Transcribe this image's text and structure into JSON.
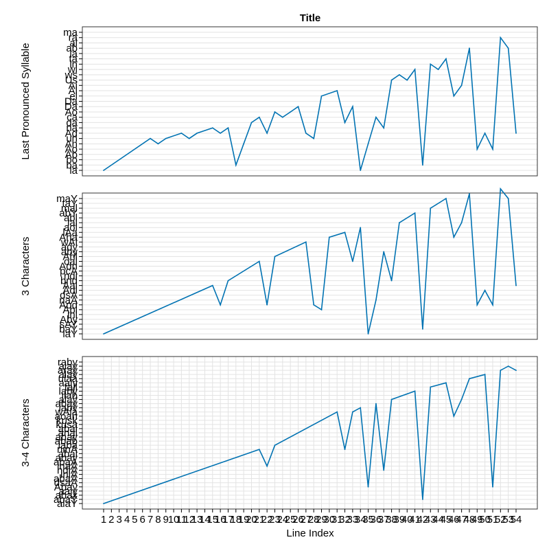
{
  "figure": {
    "title": "Title",
    "xlabel": "Line Index"
  },
  "chart_data": [
    {
      "type": "line",
      "ylabel": "Last Pronounced Syllable",
      "x_categories": [
        "1",
        "2",
        "3",
        "4",
        "5",
        "6",
        "7",
        "8",
        "9",
        "10",
        "11",
        "12",
        "13",
        "14",
        "15",
        "16",
        "17",
        "18",
        "19",
        "20",
        "21",
        "22",
        "23",
        "24",
        "25",
        "26",
        "27",
        "28",
        "29",
        "30",
        "31",
        "32",
        "33",
        "34",
        "35",
        "36",
        "37",
        "38",
        "39",
        "40",
        "41",
        "42",
        "43",
        "44",
        "45",
        "46",
        "47",
        "48",
        "49",
        "50",
        "51",
        "52",
        "53",
        "54"
      ],
      "y_categories": [
        "la",
        "ba",
        "bo",
        "Ab",
        "Ao",
        "An",
        "un",
        "Ad",
        "na",
        "da",
        "ca",
        "Ao",
        "Da",
        "Da",
        "el",
        "Al",
        "Ai",
        "Us",
        "ws",
        "wi",
        "in",
        "ta",
        "la",
        "ab",
        "al",
        "ra",
        "ma"
      ],
      "series_color": "#0072b2",
      "series": [
        {
          "x": 1,
          "y": 1
        },
        {
          "x": 7,
          "y": 7
        },
        {
          "x": 8,
          "y": 6
        },
        {
          "x": 9,
          "y": 7
        },
        {
          "x": 11,
          "y": 8
        },
        {
          "x": 12,
          "y": 7
        },
        {
          "x": 13,
          "y": 8
        },
        {
          "x": 15,
          "y": 9
        },
        {
          "x": 16,
          "y": 8
        },
        {
          "x": 17,
          "y": 9
        },
        {
          "x": 18,
          "y": 2
        },
        {
          "x": 19,
          "y": 6
        },
        {
          "x": 20,
          "y": 10
        },
        {
          "x": 21,
          "y": 11
        },
        {
          "x": 22,
          "y": 8
        },
        {
          "x": 23,
          "y": 12
        },
        {
          "x": 24,
          "y": 11
        },
        {
          "x": 25,
          "y": 12
        },
        {
          "x": 26,
          "y": 13
        },
        {
          "x": 27,
          "y": 8
        },
        {
          "x": 28,
          "y": 7
        },
        {
          "x": 29,
          "y": 15
        },
        {
          "x": 31,
          "y": 16
        },
        {
          "x": 32,
          "y": 10
        },
        {
          "x": 33,
          "y": 13
        },
        {
          "x": 34,
          "y": 1
        },
        {
          "x": 35,
          "y": 6
        },
        {
          "x": 36,
          "y": 11
        },
        {
          "x": 37,
          "y": 9
        },
        {
          "x": 38,
          "y": 18
        },
        {
          "x": 39,
          "y": 19
        },
        {
          "x": 40,
          "y": 18
        },
        {
          "x": 41,
          "y": 20
        },
        {
          "x": 42,
          "y": 2
        },
        {
          "x": 43,
          "y": 21
        },
        {
          "x": 44,
          "y": 20
        },
        {
          "x": 45,
          "y": 22
        },
        {
          "x": 46,
          "y": 15
        },
        {
          "x": 47,
          "y": 17
        },
        {
          "x": 48,
          "y": 24
        },
        {
          "x": 49,
          "y": 5
        },
        {
          "x": 50,
          "y": 8
        },
        {
          "x": 51,
          "y": 5
        },
        {
          "x": 52,
          "y": 26
        },
        {
          "x": 53,
          "y": 24
        },
        {
          "x": 54,
          "y": 8
        }
      ]
    },
    {
      "type": "line",
      "ylabel": "3 Characters",
      "x_categories": [
        "1",
        "2",
        "3",
        "4",
        "5",
        "6",
        "7",
        "8",
        "9",
        "10",
        "11",
        "12",
        "13",
        "14",
        "15",
        "16",
        "17",
        "18",
        "19",
        "20",
        "21",
        "22",
        "23",
        "24",
        "25",
        "26",
        "27",
        "28",
        "29",
        "30",
        "31",
        "32",
        "33",
        "34",
        "35",
        "36",
        "37",
        "38",
        "39",
        "40",
        "41",
        "42",
        "43",
        "44",
        "45",
        "46",
        "47",
        "48",
        "49",
        "50",
        "51",
        "52",
        "53",
        "54"
      ],
      "y_categories": [
        "laY",
        "baY",
        "sAY",
        "Aby",
        "inl",
        "Abl",
        "Aod",
        "naA",
        "dsA",
        "Adl",
        "Aal",
        "bnd",
        "ndi",
        "pcA",
        "Adn",
        "oal",
        "Ahl",
        "aby",
        "ady",
        "wAl",
        "Aha",
        "lAa",
        "aol",
        "lal",
        "abl",
        "abY",
        "mal",
        "taY",
        "maY"
      ],
      "series_color": "#0072b2",
      "series": [
        {
          "x": 1,
          "y": 1
        },
        {
          "x": 15,
          "y": 11
        },
        {
          "x": 16,
          "y": 7
        },
        {
          "x": 17,
          "y": 12
        },
        {
          "x": 21,
          "y": 16
        },
        {
          "x": 22,
          "y": 7
        },
        {
          "x": 23,
          "y": 17
        },
        {
          "x": 27,
          "y": 20
        },
        {
          "x": 28,
          "y": 7
        },
        {
          "x": 29,
          "y": 6
        },
        {
          "x": 30,
          "y": 21
        },
        {
          "x": 32,
          "y": 22
        },
        {
          "x": 33,
          "y": 16
        },
        {
          "x": 34,
          "y": 23
        },
        {
          "x": 35,
          "y": 1
        },
        {
          "x": 36,
          "y": 8
        },
        {
          "x": 37,
          "y": 18
        },
        {
          "x": 38,
          "y": 12
        },
        {
          "x": 39,
          "y": 24
        },
        {
          "x": 41,
          "y": 26
        },
        {
          "x": 42,
          "y": 2
        },
        {
          "x": 43,
          "y": 27
        },
        {
          "x": 45,
          "y": 29
        },
        {
          "x": 46,
          "y": 21
        },
        {
          "x": 47,
          "y": 24
        },
        {
          "x": 48,
          "y": 30
        },
        {
          "x": 49,
          "y": 7
        },
        {
          "x": 50,
          "y": 10
        },
        {
          "x": 51,
          "y": 7
        },
        {
          "x": 52,
          "y": 31
        },
        {
          "x": 53,
          "y": 29
        },
        {
          "x": 54,
          "y": 11
        }
      ]
    },
    {
      "type": "line",
      "ylabel": "3-4 Characters",
      "x_categories": [
        "1",
        "2",
        "3",
        "4",
        "5",
        "6",
        "7",
        "8",
        "9",
        "10",
        "11",
        "12",
        "13",
        "14",
        "15",
        "16",
        "17",
        "18",
        "19",
        "20",
        "21",
        "22",
        "23",
        "24",
        "25",
        "26",
        "27",
        "28",
        "29",
        "30",
        "31",
        "32",
        "33",
        "34",
        "35",
        "36",
        "37",
        "38",
        "39",
        "40",
        "41",
        "42",
        "43",
        "44",
        "45",
        "46",
        "47",
        "48",
        "49",
        "50",
        "51",
        "52",
        "53",
        "54"
      ],
      "y_categories": [
        "alaY",
        "abaY",
        "abax",
        "aaly",
        "Abay",
        "dsaA",
        "abaA",
        "inlA",
        "ndiA",
        "lnaA",
        "abaA",
        "abay",
        "abal",
        "ninA",
        "laba",
        "abab",
        "ahay",
        "anal",
        "abal",
        "kusa",
        "kusk",
        "aoan",
        "wAla",
        "laby",
        "abay",
        "alay",
        "ilab",
        "laby",
        "tall",
        "aaly",
        "ulaa",
        "alay",
        "aray",
        "alay",
        "raby"
      ],
      "series_color": "#0072b2",
      "series": [
        {
          "x": 1,
          "y": 1
        },
        {
          "x": 21,
          "y": 14
        },
        {
          "x": 22,
          "y": 10
        },
        {
          "x": 23,
          "y": 15
        },
        {
          "x": 31,
          "y": 23
        },
        {
          "x": 32,
          "y": 14
        },
        {
          "x": 33,
          "y": 23
        },
        {
          "x": 34,
          "y": 24
        },
        {
          "x": 35,
          "y": 5
        },
        {
          "x": 36,
          "y": 25
        },
        {
          "x": 37,
          "y": 9
        },
        {
          "x": 38,
          "y": 26
        },
        {
          "x": 41,
          "y": 28
        },
        {
          "x": 42,
          "y": 2
        },
        {
          "x": 43,
          "y": 29
        },
        {
          "x": 45,
          "y": 30
        },
        {
          "x": 46,
          "y": 22
        },
        {
          "x": 47,
          "y": 26
        },
        {
          "x": 48,
          "y": 31
        },
        {
          "x": 50,
          "y": 32
        },
        {
          "x": 51,
          "y": 5
        },
        {
          "x": 52,
          "y": 33
        },
        {
          "x": 53,
          "y": 34
        },
        {
          "x": 54,
          "y": 33
        }
      ]
    }
  ]
}
